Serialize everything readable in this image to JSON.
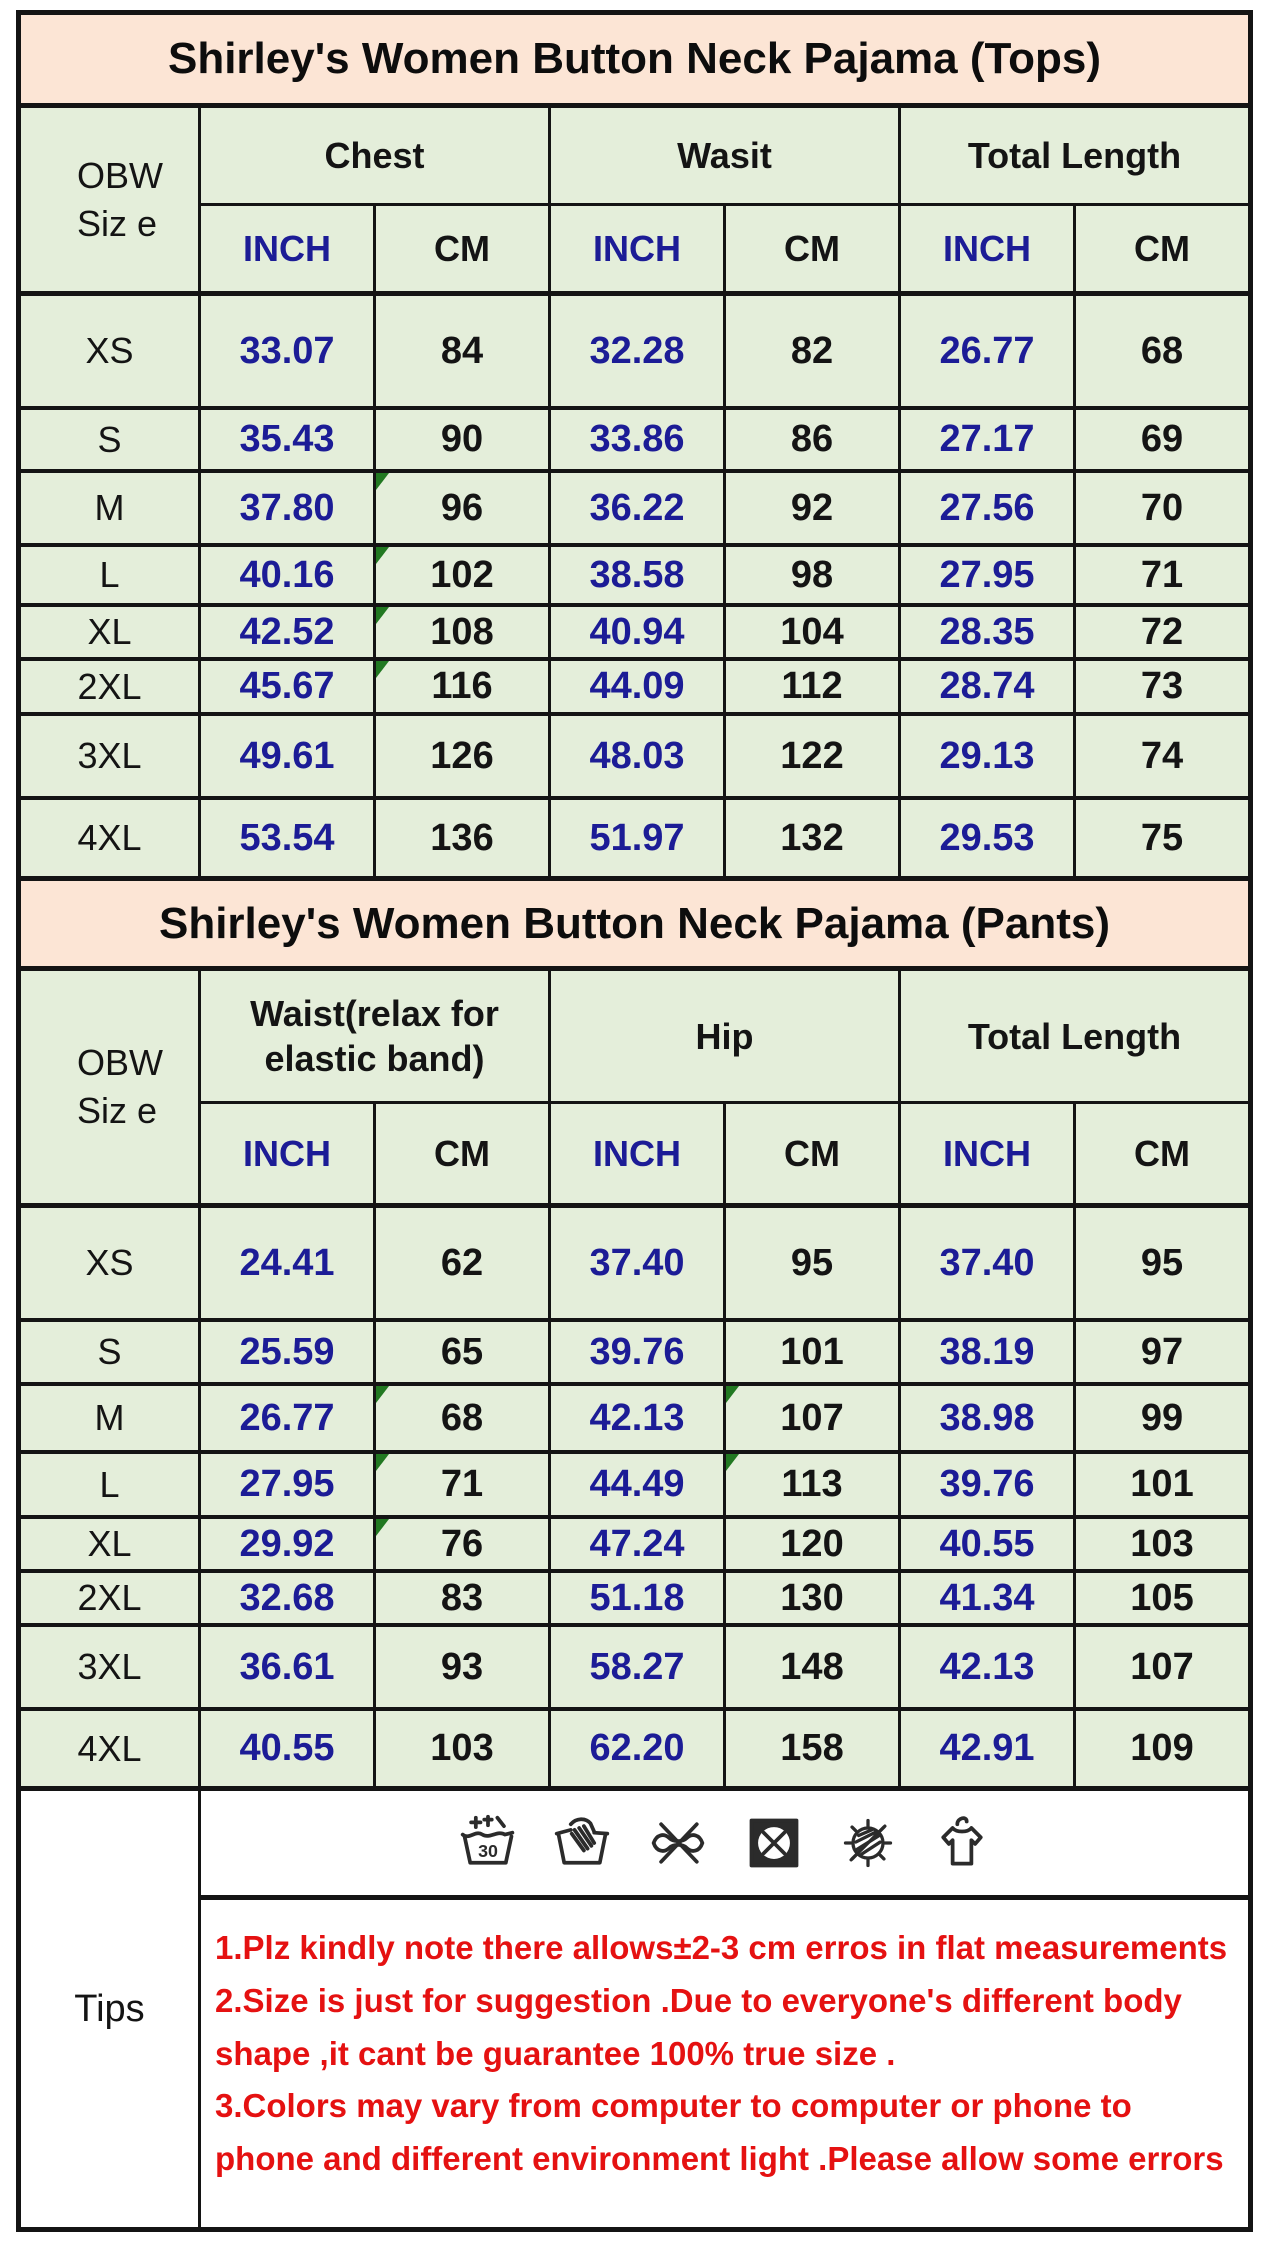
{
  "page": {
    "background": "#ffffff",
    "border_color": "#141414",
    "title_band_color": "#fce5d5",
    "cell_color": "#e4eeda",
    "inch_text_color": "#1c1c96",
    "notes_text_color": "#e51111",
    "comment_marker_color": "#217821"
  },
  "tops": {
    "title": "Shirley's Women Button Neck Pajama (Tops)",
    "size_header_line1": "OBW",
    "size_header_line2": "Siz e",
    "group_headers": [
      "Chest",
      "Wasit",
      "Total Length"
    ],
    "unit_headers": [
      "INCH",
      "CM",
      "INCH",
      "CM",
      "INCH",
      "CM"
    ],
    "rows": [
      {
        "size": "XS",
        "values": [
          "33.07",
          "84",
          "32.28",
          "82",
          "26.77",
          "68"
        ],
        "marks": []
      },
      {
        "size": "S",
        "values": [
          "35.43",
          "90",
          "33.86",
          "86",
          "27.17",
          "69"
        ],
        "marks": []
      },
      {
        "size": "M",
        "values": [
          "37.80",
          "96",
          "36.22",
          "92",
          "27.56",
          "70"
        ],
        "marks": [
          1
        ]
      },
      {
        "size": "L",
        "values": [
          "40.16",
          "102",
          "38.58",
          "98",
          "27.95",
          "71"
        ],
        "marks": [
          1
        ]
      },
      {
        "size": "XL",
        "values": [
          "42.52",
          "108",
          "40.94",
          "104",
          "28.35",
          "72"
        ],
        "marks": [
          1
        ]
      },
      {
        "size": "2XL",
        "values": [
          "45.67",
          "116",
          "44.09",
          "112",
          "28.74",
          "73"
        ],
        "marks": [
          1
        ]
      },
      {
        "size": "3XL",
        "values": [
          "49.61",
          "126",
          "48.03",
          "122",
          "29.13",
          "74"
        ],
        "marks": []
      },
      {
        "size": "4XL",
        "values": [
          "53.54",
          "136",
          "51.97",
          "132",
          "29.53",
          "75"
        ],
        "marks": []
      }
    ]
  },
  "pants": {
    "title": "Shirley's Women Button Neck Pajama (Pants)",
    "size_header_line1": "OBW",
    "size_header_line2": "Siz e",
    "group_headers": [
      "Waist(relax for elastic band)",
      "Hip",
      "Total Length"
    ],
    "unit_headers": [
      "INCH",
      "CM",
      "INCH",
      "CM",
      "INCH",
      "CM"
    ],
    "rows": [
      {
        "size": "XS",
        "values": [
          "24.41",
          "62",
          "37.40",
          "95",
          "37.40",
          "95"
        ],
        "marks": []
      },
      {
        "size": "S",
        "values": [
          "25.59",
          "65",
          "39.76",
          "101",
          "38.19",
          "97"
        ],
        "marks": []
      },
      {
        "size": "M",
        "values": [
          "26.77",
          "68",
          "42.13",
          "107",
          "38.98",
          "99"
        ],
        "marks": [
          1,
          3
        ]
      },
      {
        "size": "L",
        "values": [
          "27.95",
          "71",
          "44.49",
          "113",
          "39.76",
          "101"
        ],
        "marks": [
          1,
          3
        ]
      },
      {
        "size": "XL",
        "values": [
          "29.92",
          "76",
          "47.24",
          "120",
          "40.55",
          "103"
        ],
        "marks": [
          1
        ]
      },
      {
        "size": "2XL",
        "values": [
          "32.68",
          "83",
          "51.18",
          "130",
          "41.34",
          "105"
        ],
        "marks": []
      },
      {
        "size": "3XL",
        "values": [
          "36.61",
          "93",
          "58.27",
          "148",
          "42.13",
          "107"
        ],
        "marks": []
      },
      {
        "size": "4XL",
        "values": [
          "40.55",
          "103",
          "62.20",
          "158",
          "42.91",
          "109"
        ],
        "marks": []
      }
    ]
  },
  "tips": {
    "label": "Tips",
    "care_icons": [
      "wash-30",
      "hand-wash",
      "do-not-wring",
      "do-not-tumble-dry",
      "do-not-dry-in-sun",
      "hang-dry"
    ],
    "notes": [
      "1.Plz kindly note there allows±2-3 cm erros in flat measurements",
      "2.Size is just for suggestion .Due to everyone's different body shape ,it cant be guarantee 100% true size .",
      "3.Colors may  vary from computer to computer or phone to phone and different environment light .Please allow some errors"
    ]
  }
}
